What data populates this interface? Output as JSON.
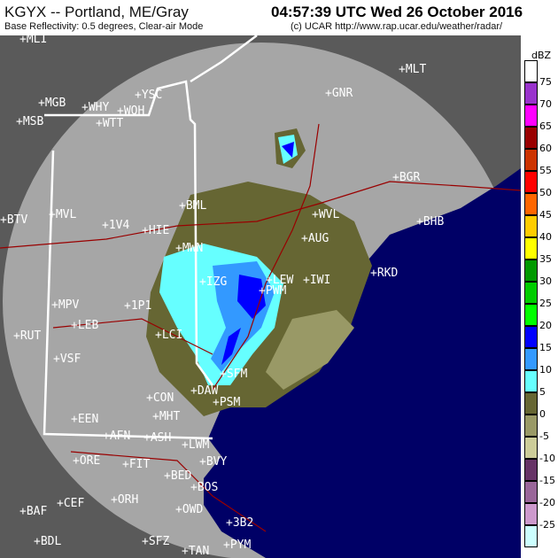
{
  "header": {
    "station": "KGYX -- Portland, ME/Gray",
    "product": "Base Reflectivity: 0.5 degrees, Clear-air Mode",
    "timestamp": "04:57:39 UTC Wed 26 October 2016",
    "credit": "(c) UCAR  http://www.rap.ucar.edu/weather/radar/"
  },
  "legend": {
    "unit": "dBZ",
    "colors": [
      "#ffffff",
      "#9933cc",
      "#ff00ff",
      "#990000",
      "#cc3300",
      "#ff0000",
      "#ff6600",
      "#ffcc00",
      "#ffff00",
      "#009900",
      "#00cc00",
      "#00ff00",
      "#0000ff",
      "#3399ff",
      "#66ffff",
      "#666633",
      "#999966",
      "#cccc99",
      "#663366",
      "#996699",
      "#cc99cc",
      "#ccffff"
    ],
    "labels": [
      "75",
      "70",
      "65",
      "60",
      "55",
      "50",
      "45",
      "40",
      "35",
      "30",
      "25",
      "20",
      "15",
      "10",
      "5",
      "0",
      "-5",
      "-10",
      "-15",
      "-20",
      "-25"
    ]
  },
  "map": {
    "colors": {
      "outside": "#5a5a5a",
      "range": "#a6a6a6",
      "ocean": "#000066",
      "echo_weak": "#666633",
      "echo_light": "#999966",
      "echo_cyan": "#66ffff",
      "echo_blue": "#3399ff",
      "echo_dark": "#0000ff",
      "road": "#990000",
      "border": "#ffffff"
    },
    "stations": [
      "MLI",
      "YSC",
      "WQH",
      "WHY",
      "WTT",
      "MGB",
      "MSB",
      "GNR",
      "MLT",
      "BGR",
      "BML",
      "1V4",
      "HIE",
      "MVL",
      "BTV",
      "MWN",
      "WVL",
      "AUG",
      "IZG",
      "LEW",
      "IWI",
      "RKD",
      "BHB",
      "MPV",
      "1P1",
      "LEB",
      "RUT",
      "LCI",
      "VSF",
      "SFM",
      "DAW",
      "CON",
      "PSM",
      "MHT",
      "EEN",
      "AFN",
      "ASH",
      "LWM",
      "ORE",
      "FIT",
      "BVY",
      "BED",
      "BOS",
      "ORH",
      "OWD",
      "BAF",
      "CEF",
      "3B2",
      "BDL",
      "SFZ",
      "TAN",
      "PYM",
      "PWM"
    ]
  }
}
